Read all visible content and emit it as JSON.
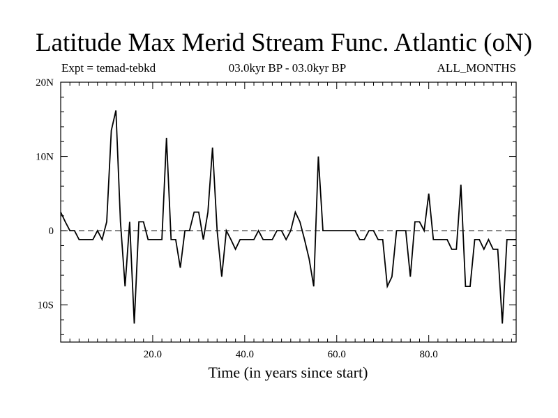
{
  "chart_data": {
    "type": "line",
    "title": "Latitude Max Merid Stream Func. Atlantic (oN)",
    "subtitle_left": "Expt = temad-tebkd",
    "subtitle_center": "03.0kyr BP - 03.0kyr BP",
    "subtitle_right": "ALL_MONTHS",
    "xlabel": "Time (in years since start)",
    "ylabel": "",
    "xlim": [
      0,
      99
    ],
    "ylim": [
      -15,
      20
    ],
    "x_ticks": [
      20,
      40,
      60,
      80
    ],
    "x_tick_labels": [
      "20.0",
      "40.0",
      "60.0",
      "80.0"
    ],
    "y_ticks": [
      20,
      10,
      0,
      -10
    ],
    "y_tick_labels": [
      "20N",
      "10N",
      "0",
      "10S"
    ],
    "zero_line": true,
    "grid": false,
    "series": [
      {
        "x": [
          0,
          1,
          2,
          3,
          4,
          5,
          6,
          7,
          8,
          9,
          10,
          11,
          12,
          13,
          14,
          15,
          16,
          17,
          18,
          19,
          20,
          21,
          22,
          23,
          24,
          25,
          26,
          27,
          28,
          29,
          30,
          31,
          32,
          33,
          34,
          35,
          36,
          37,
          38,
          39,
          40,
          41,
          42,
          43,
          44,
          45,
          46,
          47,
          48,
          49,
          50,
          51,
          52,
          53,
          54,
          55,
          56,
          57,
          58,
          59,
          60,
          61,
          62,
          63,
          64,
          65,
          66,
          67,
          68,
          69,
          70,
          71,
          72,
          73,
          74,
          75,
          76,
          77,
          78,
          79,
          80,
          81,
          82,
          83,
          84,
          85,
          86,
          87,
          88,
          89,
          90,
          91,
          92,
          93,
          94,
          95,
          96,
          97,
          98,
          99
        ],
        "values": [
          2.5,
          1.2,
          0,
          0,
          -1.2,
          -1.2,
          -1.2,
          -1.2,
          0,
          -1.2,
          1.2,
          13.5,
          16.2,
          1.2,
          -7.5,
          1.2,
          -12.5,
          1.2,
          1.2,
          -1.2,
          -1.2,
          -1.2,
          -1.2,
          12.5,
          -1.2,
          -1.2,
          -5,
          0,
          0,
          2.5,
          2.5,
          -1.2,
          2.5,
          11.2,
          0,
          -6.2,
          0,
          -1.2,
          -2.5,
          -1.2,
          -1.2,
          -1.2,
          -1.2,
          0,
          -1.2,
          -1.2,
          -1.2,
          0,
          0,
          -1.2,
          0,
          2.5,
          1.2,
          -1.2,
          -3.8,
          -7.5,
          10,
          0,
          0,
          0,
          0,
          0,
          0,
          0,
          0,
          -1.2,
          -1.2,
          0,
          0,
          -1.2,
          -1.2,
          -7.5,
          -6.2,
          0,
          0,
          0,
          -6.2,
          1.2,
          1.2,
          0,
          5,
          -1.2,
          -1.2,
          -1.2,
          -1.2,
          -2.5,
          -2.5,
          6.2,
          -7.5,
          -7.5,
          -1.2,
          -1.2,
          -2.5,
          -1.2,
          -2.5,
          -2.5,
          -12.5,
          -1.2,
          -1.2,
          -1.2
        ]
      }
    ]
  }
}
